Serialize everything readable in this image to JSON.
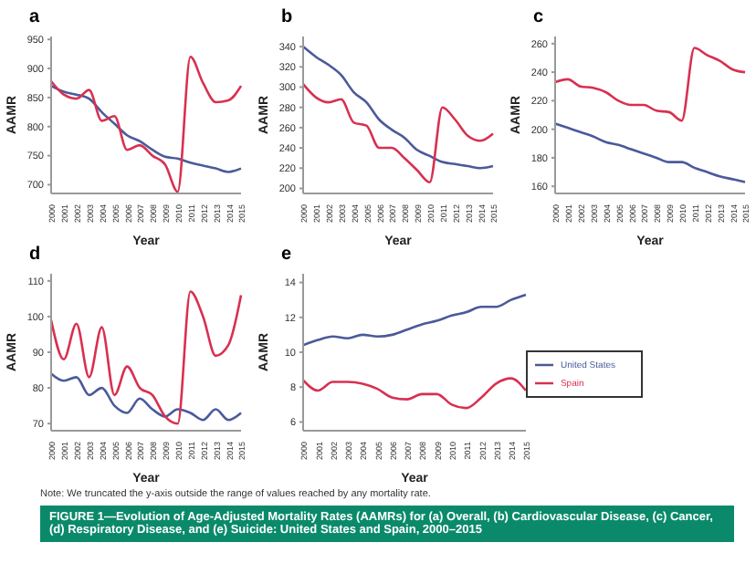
{
  "chart_data": [
    {
      "type": "line",
      "title": "a",
      "xlabel": "Year",
      "ylabel": "AAMR",
      "categories": [
        "2000",
        "2001",
        "2002",
        "2003",
        "2004",
        "2005",
        "2006",
        "2007",
        "2008",
        "2009",
        "2010",
        "2011",
        "2012",
        "2013",
        "2014",
        "2015"
      ],
      "ylim": [
        685,
        955
      ],
      "yticks": [
        700,
        750,
        800,
        850,
        900,
        950
      ],
      "legend": false,
      "series": [
        {
          "color": "#4a5a9a",
          "values": [
            870,
            860,
            855,
            848,
            825,
            805,
            785,
            775,
            760,
            748,
            745,
            738,
            733,
            728,
            722,
            728
          ]
        },
        {
          "color": "#d83050",
          "values": [
            878,
            855,
            848,
            863,
            810,
            818,
            760,
            768,
            750,
            735,
            688,
            920,
            875,
            842,
            845,
            870
          ]
        }
      ]
    },
    {
      "type": "line",
      "title": "b",
      "xlabel": "Year",
      "ylabel": "AAMR",
      "categories": [
        "2000",
        "2001",
        "2002",
        "2003",
        "2004",
        "2005",
        "2006",
        "2007",
        "2008",
        "2009",
        "2010",
        "2011",
        "2012",
        "2013",
        "2014",
        "2015"
      ],
      "ylim": [
        195,
        350
      ],
      "yticks": [
        200,
        220,
        240,
        260,
        280,
        300,
        320,
        340
      ],
      "legend": false,
      "series": [
        {
          "color": "#4a5a9a",
          "values": [
            340,
            330,
            322,
            312,
            295,
            285,
            268,
            258,
            250,
            238,
            232,
            226,
            224,
            222,
            220,
            222
          ]
        },
        {
          "color": "#d83050",
          "values": [
            303,
            290,
            285,
            288,
            265,
            262,
            240,
            240,
            230,
            218,
            206,
            280,
            268,
            252,
            247,
            254
          ]
        }
      ]
    },
    {
      "type": "line",
      "title": "c",
      "xlabel": "Year",
      "ylabel": "AAMR",
      "categories": [
        "2000",
        "2001",
        "2002",
        "2003",
        "2004",
        "2005",
        "2006",
        "2007",
        "2008",
        "2009",
        "2010",
        "2011",
        "2012",
        "2013",
        "2014",
        "2015"
      ],
      "ylim": [
        155,
        265
      ],
      "yticks": [
        160,
        180,
        200,
        220,
        240,
        260
      ],
      "legend": false,
      "series": [
        {
          "color": "#4a5a9a",
          "values": [
            204,
            201,
            198,
            195,
            191,
            189,
            186,
            183,
            180,
            177,
            177,
            173,
            170,
            167,
            165,
            163
          ]
        },
        {
          "color": "#d83050",
          "values": [
            233,
            235,
            230,
            229,
            226,
            220,
            217,
            217,
            213,
            212,
            206,
            257,
            252,
            248,
            242,
            240
          ]
        }
      ]
    },
    {
      "type": "line",
      "title": "d",
      "xlabel": "Year",
      "ylabel": "AAMR",
      "categories": [
        "2000",
        "2001",
        "2002",
        "2003",
        "2004",
        "2005",
        "2006",
        "2007",
        "2008",
        "2009",
        "2010",
        "2011",
        "2012",
        "2013",
        "2014",
        "2015"
      ],
      "ylim": [
        68,
        112
      ],
      "yticks": [
        70,
        80,
        90,
        100,
        110
      ],
      "legend": false,
      "series": [
        {
          "color": "#4a5a9a",
          "values": [
            84,
            82,
            83,
            78,
            80,
            75,
            73,
            77,
            74,
            72,
            74,
            73,
            71,
            74,
            71,
            73
          ]
        },
        {
          "color": "#d83050",
          "values": [
            99,
            88,
            98,
            83,
            97,
            78,
            86,
            80,
            78,
            72,
            70,
            107,
            100,
            89,
            92,
            106
          ]
        }
      ]
    },
    {
      "type": "line",
      "title": "e",
      "xlabel": "Year",
      "ylabel": "AAMR",
      "categories": [
        "2000",
        "2001",
        "2002",
        "2003",
        "2004",
        "2005",
        "2006",
        "2007",
        "2008",
        "2009",
        "2010",
        "2011",
        "2012",
        "2013",
        "2014",
        "2015"
      ],
      "ylim": [
        5.5,
        14.5
      ],
      "yticks": [
        6,
        8,
        10,
        12,
        14
      ],
      "legend": "right",
      "series": [
        {
          "name": "United States",
          "color": "#4a5a9a",
          "values": [
            10.4,
            10.7,
            10.9,
            10.8,
            11.0,
            10.9,
            11.0,
            11.3,
            11.6,
            11.8,
            12.1,
            12.3,
            12.6,
            12.6,
            13.0,
            13.3
          ]
        },
        {
          "name": "Spain",
          "color": "#d83050",
          "values": [
            8.4,
            7.8,
            8.3,
            8.3,
            8.2,
            7.9,
            7.4,
            7.3,
            7.6,
            7.6,
            7.0,
            6.8,
            7.4,
            8.2,
            8.5,
            7.8
          ]
        }
      ],
      "annotations": [
        "Note: We truncated the y-axis outside the range of values reached by any mortality rate.",
        "FIGURE 1—Evolution of Age-Adjusted Mortality Rates (AAMRs) for (a) Overall, (b) Cardiovascular Disease, (c) Cancer, (d) Respiratory Disease, and (e) Suicide: United States and Spain, 2000–2015"
      ]
    }
  ]
}
